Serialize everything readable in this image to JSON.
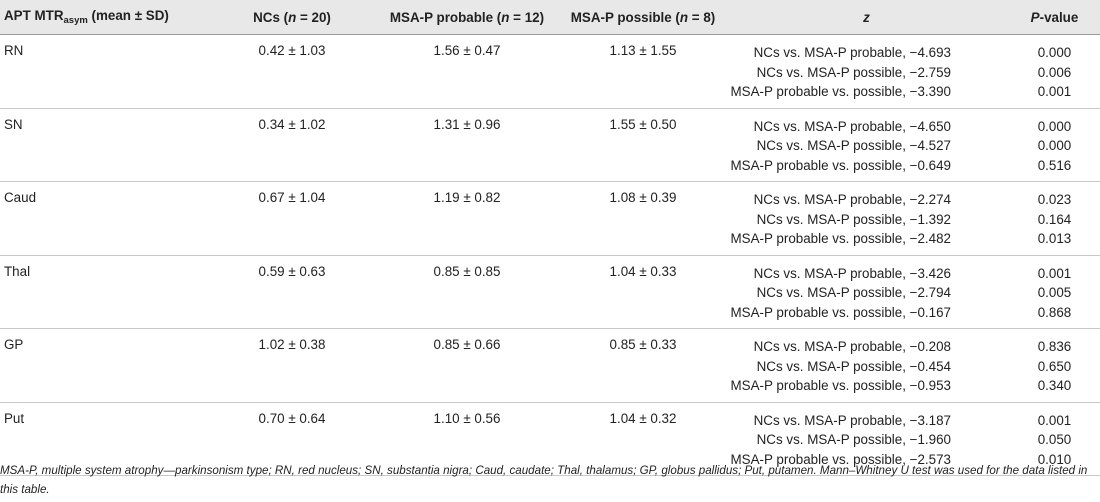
{
  "header": {
    "col0_prefix": "APT MTR",
    "col0_sub": "asym",
    "col0_suffix": " (mean ± SD)",
    "col1_a": "NCs (",
    "col1_n": "n",
    "col1_b": " = 20)",
    "col2_a": "MSA-P probable (",
    "col2_n": "n",
    "col2_b": " = 12)",
    "col3_a": "MSA-P possible (",
    "col3_n": "n",
    "col3_b": " = 8)",
    "col4": "z",
    "col5_a": "P",
    "col5_b": "-value"
  },
  "rows": [
    {
      "region": "RN",
      "ncs": "0.42 ± 1.03",
      "probable": "1.56 ± 0.47",
      "possible": "1.13 ± 1.55",
      "z": [
        "NCs vs. MSA-P probable, −4.693",
        "NCs vs. MSA-P possible, −2.759",
        "MSA-P probable vs. possible, −3.390"
      ],
      "p": [
        "0.000",
        "0.006",
        "0.001"
      ]
    },
    {
      "region": "SN",
      "ncs": "0.34 ± 1.02",
      "probable": "1.31 ± 0.96",
      "possible": "1.55 ± 0.50",
      "z": [
        "NCs vs. MSA-P probable, −4.650",
        "NCs vs. MSA-P possible, −4.527",
        "MSA-P probable vs. possible, −0.649"
      ],
      "p": [
        "0.000",
        "0.000",
        "0.516"
      ]
    },
    {
      "region": "Caud",
      "ncs": "0.67 ± 1.04",
      "probable": "1.19 ± 0.82",
      "possible": "1.08 ± 0.39",
      "z": [
        "NCs vs. MSA-P probable, −2.274",
        "NCs vs. MSA-P possible, −1.392",
        "MSA-P probable vs. possible, −2.482"
      ],
      "p": [
        "0.023",
        "0.164",
        "0.013"
      ]
    },
    {
      "region": "Thal",
      "ncs": "0.59 ± 0.63",
      "probable": "0.85 ± 0.85",
      "possible": "1.04 ± 0.33",
      "z": [
        "NCs vs. MSA-P probable, −3.426",
        "NCs vs. MSA-P possible, −2.794",
        "MSA-P probable vs. possible, −0.167"
      ],
      "p": [
        "0.001",
        "0.005",
        "0.868"
      ]
    },
    {
      "region": "GP",
      "ncs": "1.02 ± 0.38",
      "probable": "0.85 ± 0.66",
      "possible": "0.85 ± 0.33",
      "z": [
        "NCs vs. MSA-P probable, −0.208",
        "NCs vs. MSA-P possible, −0.454",
        "MSA-P probable vs. possible, −0.953"
      ],
      "p": [
        "0.836",
        "0.650",
        "0.340"
      ]
    },
    {
      "region": "Put",
      "ncs": "0.70 ± 0.64",
      "probable": "1.10 ± 0.56",
      "possible": "1.04 ± 0.32",
      "z": [
        "NCs vs. MSA-P probable, −3.187",
        "NCs vs. MSA-P possible, −1.960",
        "MSA-P probable vs. possible, −2.573"
      ],
      "p": [
        "0.001",
        "0.050",
        "0.010"
      ]
    }
  ],
  "footnote": "MSA-P, multiple system atrophy—parkinsonism type; RN, red nucleus; SN, substantia nigra; Caud, caudate; Thal, thalamus; GP, globus pallidus; Put, putamen. Mann–Whitney U test was used for the data listed in this table."
}
